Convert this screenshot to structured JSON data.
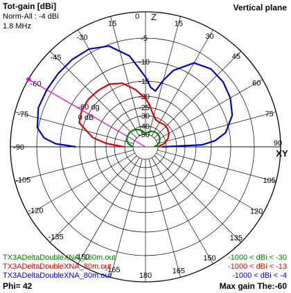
{
  "header": {
    "title": "Tot-gain [dBi]",
    "norm": "Norm-All : -4 dBi",
    "freq": "1.8 MHz",
    "plane": "Vertical plane"
  },
  "footer": {
    "phi": "Phi= 42",
    "max_gain": "Max gain The:-60"
  },
  "axis_labels": {
    "top": "Z",
    "right": "XY"
  },
  "colors": {
    "green": "#008000",
    "red": "#e00000",
    "blue": "#0000c8",
    "cursor": "#e000e0",
    "grid": "#000000"
  },
  "chart_data": {
    "type": "polar",
    "angle_ticks": [
      "15",
      "0",
      "15",
      "30",
      "45",
      "60",
      "75",
      "90",
      "105",
      "120",
      "135",
      "150",
      "165",
      "180",
      "165",
      "150",
      "135",
      "120",
      "105",
      "90",
      "75",
      "60",
      "45",
      "30"
    ],
    "left_angle_ticks": [
      "-30",
      "-45",
      "-60",
      "-75",
      "-90",
      "-105",
      "-120",
      "-135",
      "-150",
      "-165"
    ],
    "radial_ticks": [
      "-5",
      "-10",
      "-15",
      "-20",
      "-25",
      "-30",
      "-40",
      "-50"
    ],
    "cursor": {
      "angle_label": "-60 dg",
      "gain_label": "0 dB",
      "angle": -60
    },
    "series": [
      {
        "name": "TX3ADeltaDoubleXNA_160m.out",
        "range_label": "-1000 < dBi < -30",
        "color": "green",
        "points": [
          [
            -90,
            -50
          ],
          [
            -80,
            -44
          ],
          [
            -70,
            -41
          ],
          [
            -60,
            -39.8
          ],
          [
            -50,
            -39.5
          ],
          [
            -40,
            -39.8
          ],
          [
            -30,
            -41
          ],
          [
            -20,
            -43
          ],
          [
            -10,
            -46
          ],
          [
            0,
            -49
          ],
          [
            10,
            -47
          ],
          [
            20,
            -45
          ],
          [
            30,
            -44
          ],
          [
            40,
            -43.5
          ],
          [
            50,
            -44
          ],
          [
            60,
            -45
          ],
          [
            70,
            -47
          ],
          [
            80,
            -50
          ],
          [
            90,
            -53
          ]
        ]
      },
      {
        "name": "TX3ADeltaDoubleXNA_80m.out",
        "range_label": "-1000 < dBi < -13",
        "color": "red",
        "points": [
          [
            -90,
            -39
          ],
          [
            -85,
            -25
          ],
          [
            -80,
            -19
          ],
          [
            -70,
            -13.8
          ],
          [
            -60,
            -13
          ],
          [
            -50,
            -12.8
          ],
          [
            -40,
            -13
          ],
          [
            -30,
            -13.3
          ],
          [
            -20,
            -14.5
          ],
          [
            -10,
            -17.5
          ],
          [
            0,
            -21
          ],
          [
            5,
            -23.5
          ],
          [
            10,
            -27
          ],
          [
            20,
            -32
          ],
          [
            30,
            -33
          ],
          [
            40,
            -32
          ],
          [
            50,
            -32.5
          ],
          [
            60,
            -34
          ],
          [
            70,
            -37
          ],
          [
            80,
            -42
          ],
          [
            90,
            -50
          ]
        ]
      },
      {
        "name": "TX3ADeltaDoubleXNA_80m.out",
        "range_label": "-1000 < dBi < -4",
        "color": "blue",
        "points": [
          [
            -90,
            -14
          ],
          [
            -88,
            -9
          ],
          [
            -85,
            -6.5
          ],
          [
            -80,
            -4.8
          ],
          [
            -70,
            -4
          ],
          [
            -60,
            -4
          ],
          [
            -50,
            -4
          ],
          [
            -40,
            -4
          ],
          [
            -30,
            -4.2
          ],
          [
            -20,
            -5.3
          ],
          [
            -10,
            -8.5
          ],
          [
            -5,
            -11.5
          ],
          [
            0,
            -14
          ],
          [
            5,
            -17
          ],
          [
            10,
            -18
          ],
          [
            15,
            -14.2
          ],
          [
            20,
            -11
          ],
          [
            30,
            -7.5
          ],
          [
            40,
            -6.5
          ],
          [
            50,
            -6.6
          ],
          [
            60,
            -7.3
          ],
          [
            70,
            -8.5
          ],
          [
            80,
            -11
          ],
          [
            85,
            -14
          ],
          [
            88,
            -18
          ],
          [
            90,
            -45
          ]
        ]
      }
    ]
  }
}
